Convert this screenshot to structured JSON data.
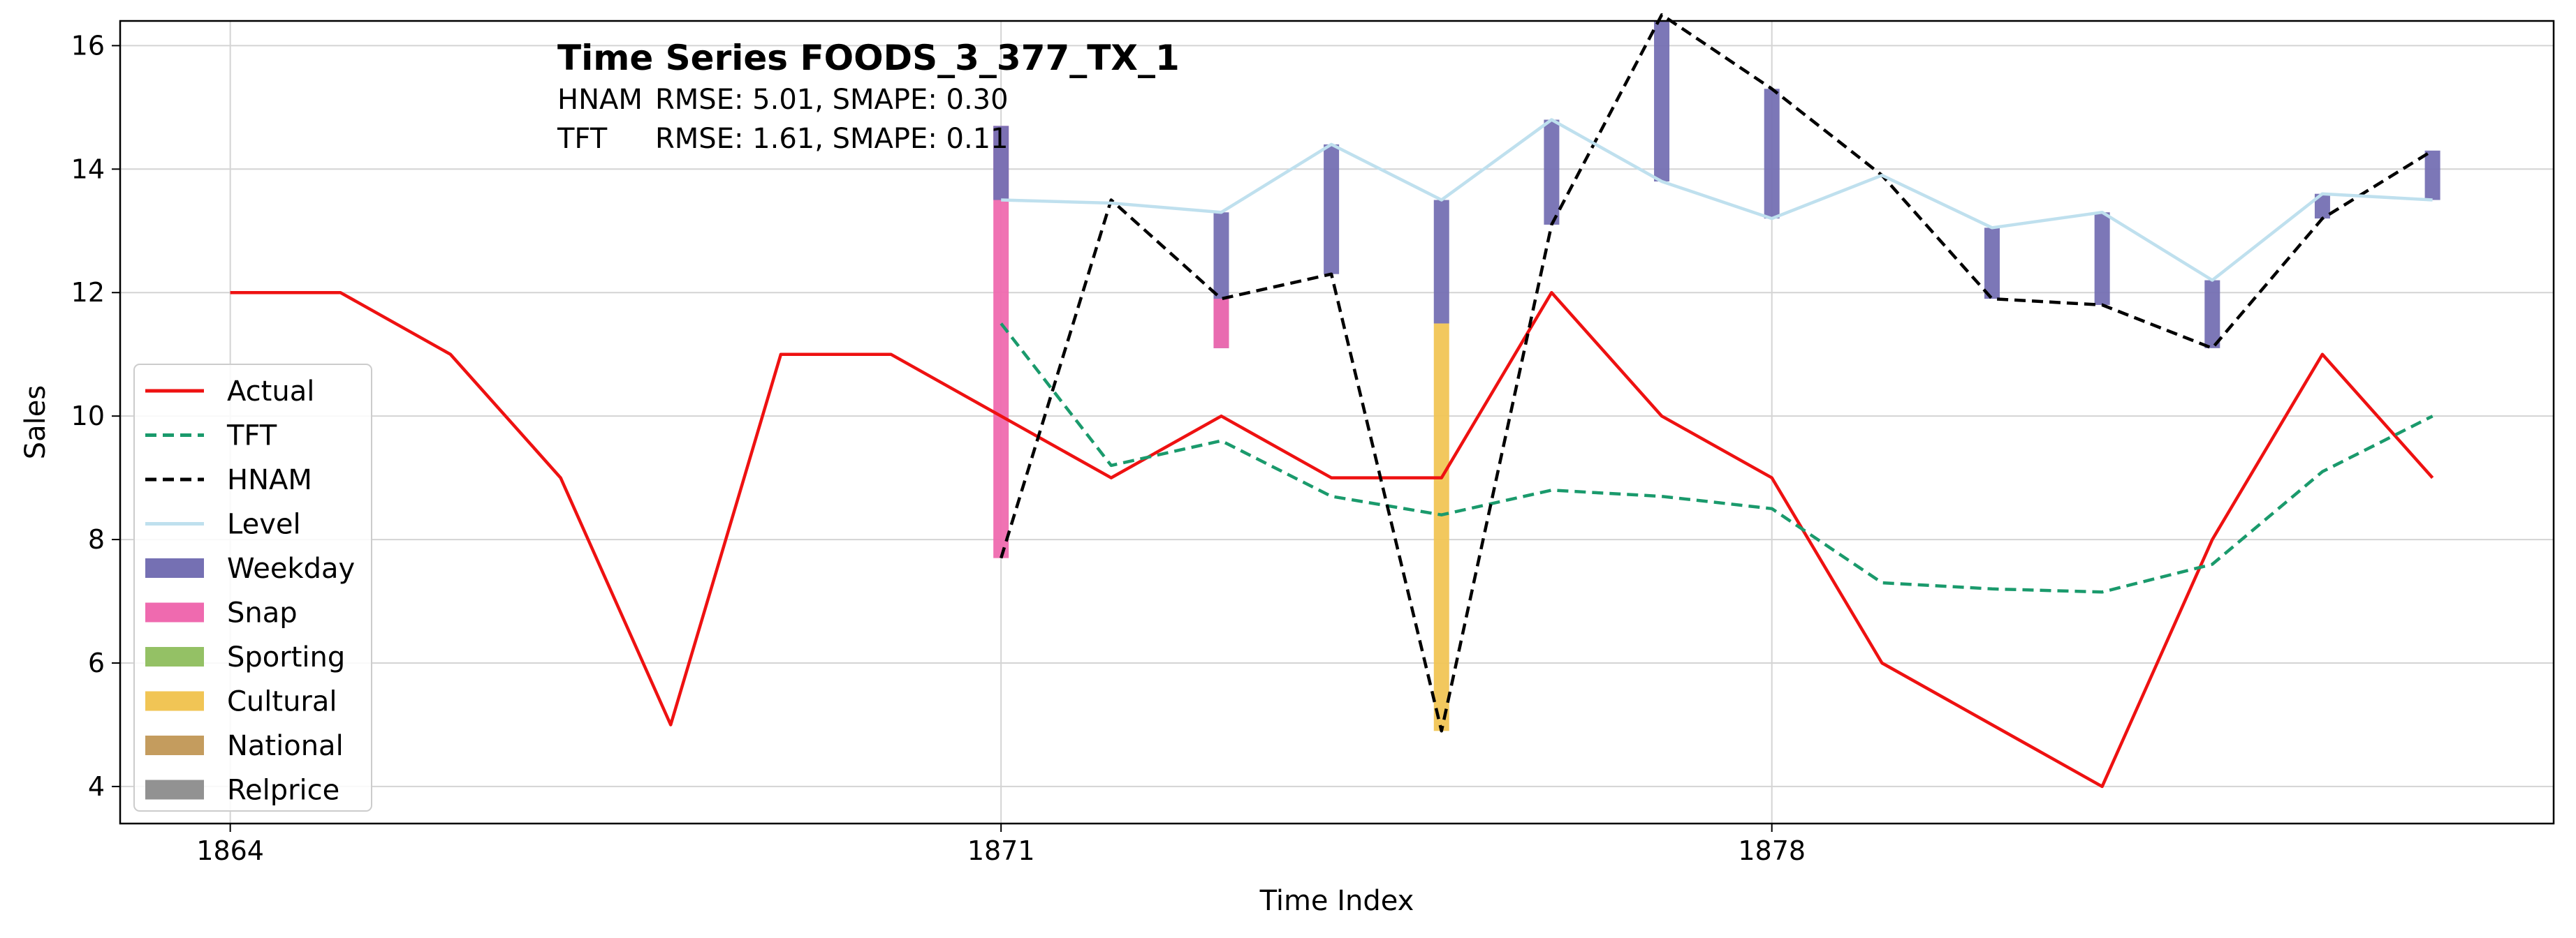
{
  "chart_data": {
    "type": "line",
    "title": "Time Series FOODS_3_377_TX_1",
    "metrics": [
      {
        "model": "HNAM",
        "text": "RMSE: 5.01,   SMAPE: 0.30"
      },
      {
        "model": "TFT",
        "text": "RMSE: 1.61,   SMAPE: 0.11"
      }
    ],
    "xlabel": "Time Index",
    "ylabel": "Sales",
    "xlim": [
      1863,
      1885.1
    ],
    "ylim": [
      3.4,
      16.4
    ],
    "xticks": [
      1864,
      1871,
      1878
    ],
    "yticks": [
      4,
      6,
      8,
      10,
      12,
      14,
      16
    ],
    "grid": true,
    "legend_position": "lower-left",
    "colors": {
      "actual": "#ee1111",
      "tft": "#1a9a6c",
      "hnam": "#000000",
      "level": "#bfe0ee",
      "weekday": "#7570b3",
      "snap": "#ef6aaf",
      "sporting": "#94c165",
      "cultural": "#f1c555",
      "national": "#c49c5e",
      "relprice": "#929292"
    },
    "series": [
      {
        "key": "actual",
        "name": "Actual",
        "style": "solid",
        "x": [
          1864,
          1865,
          1866,
          1867,
          1868,
          1869,
          1870,
          1871,
          1872,
          1873,
          1874,
          1875,
          1876,
          1877,
          1878,
          1879,
          1880,
          1881,
          1882,
          1883,
          1884
        ],
        "y": [
          12,
          12,
          11,
          9,
          5,
          11,
          11,
          10,
          9,
          10,
          9,
          9,
          12,
          10,
          9,
          6,
          5,
          4,
          8,
          11,
          9
        ]
      },
      {
        "key": "tft",
        "name": "TFT",
        "style": "dashed",
        "x": [
          1871,
          1872,
          1873,
          1874,
          1875,
          1876,
          1877,
          1878,
          1879,
          1880,
          1881,
          1882,
          1883,
          1884
        ],
        "y": [
          11.5,
          9.2,
          9.6,
          8.7,
          8.4,
          8.8,
          8.7,
          8.5,
          7.3,
          7.2,
          7.15,
          7.6,
          9.1,
          10.0
        ]
      },
      {
        "key": "hnam",
        "name": "HNAM",
        "style": "dashed",
        "x": [
          1871,
          1872,
          1873,
          1874,
          1875,
          1876,
          1877,
          1878,
          1879,
          1880,
          1881,
          1882,
          1883,
          1884
        ],
        "y": [
          7.7,
          13.5,
          11.9,
          12.3,
          4.9,
          13.1,
          16.5,
          15.3,
          13.9,
          11.9,
          11.8,
          11.1,
          13.2,
          14.3
        ]
      },
      {
        "key": "level",
        "name": "Level",
        "style": "solid",
        "x": [
          1871,
          1872,
          1873,
          1874,
          1875,
          1876,
          1877,
          1878,
          1879,
          1880,
          1881,
          1882,
          1883,
          1884
        ],
        "y": [
          13.5,
          13.45,
          13.3,
          14.4,
          13.5,
          14.8,
          13.8,
          13.2,
          13.9,
          13.05,
          13.3,
          12.2,
          13.6,
          13.5
        ]
      }
    ],
    "bar_categories": [
      {
        "key": "weekday",
        "name": "Weekday"
      },
      {
        "key": "snap",
        "name": "Snap"
      },
      {
        "key": "sporting",
        "name": "Sporting"
      },
      {
        "key": "cultural",
        "name": "Cultural"
      },
      {
        "key": "national",
        "name": "National"
      },
      {
        "key": "relprice",
        "name": "Relprice"
      }
    ],
    "effect_bars": [
      {
        "x": 1871,
        "component": "snap",
        "from": 7.7,
        "to": 14.7
      },
      {
        "x": 1871,
        "component": "weekday",
        "from": 13.5,
        "to": 14.7
      },
      {
        "x": 1873,
        "component": "weekday",
        "from": 11.1,
        "to": 13.3
      },
      {
        "x": 1873,
        "component": "snap",
        "from": 11.1,
        "to": 11.9
      },
      {
        "x": 1874,
        "component": "weekday",
        "from": 12.3,
        "to": 14.4
      },
      {
        "x": 1875,
        "component": "cultural",
        "from": 4.9,
        "to": 11.5
      },
      {
        "x": 1875,
        "component": "weekday",
        "from": 11.5,
        "to": 13.5
      },
      {
        "x": 1876,
        "component": "weekday",
        "from": 13.1,
        "to": 14.8
      },
      {
        "x": 1877,
        "component": "weekday",
        "from": 13.8,
        "to": 16.4
      },
      {
        "x": 1878,
        "component": "weekday",
        "from": 13.2,
        "to": 15.3
      },
      {
        "x": 1880,
        "component": "weekday",
        "from": 11.9,
        "to": 13.05
      },
      {
        "x": 1881,
        "component": "weekday",
        "from": 11.8,
        "to": 13.3
      },
      {
        "x": 1882,
        "component": "weekday",
        "from": 11.1,
        "to": 12.2
      },
      {
        "x": 1883,
        "component": "weekday",
        "from": 13.2,
        "to": 13.6
      },
      {
        "x": 1884,
        "component": "weekday",
        "from": 13.5,
        "to": 14.3
      }
    ]
  }
}
